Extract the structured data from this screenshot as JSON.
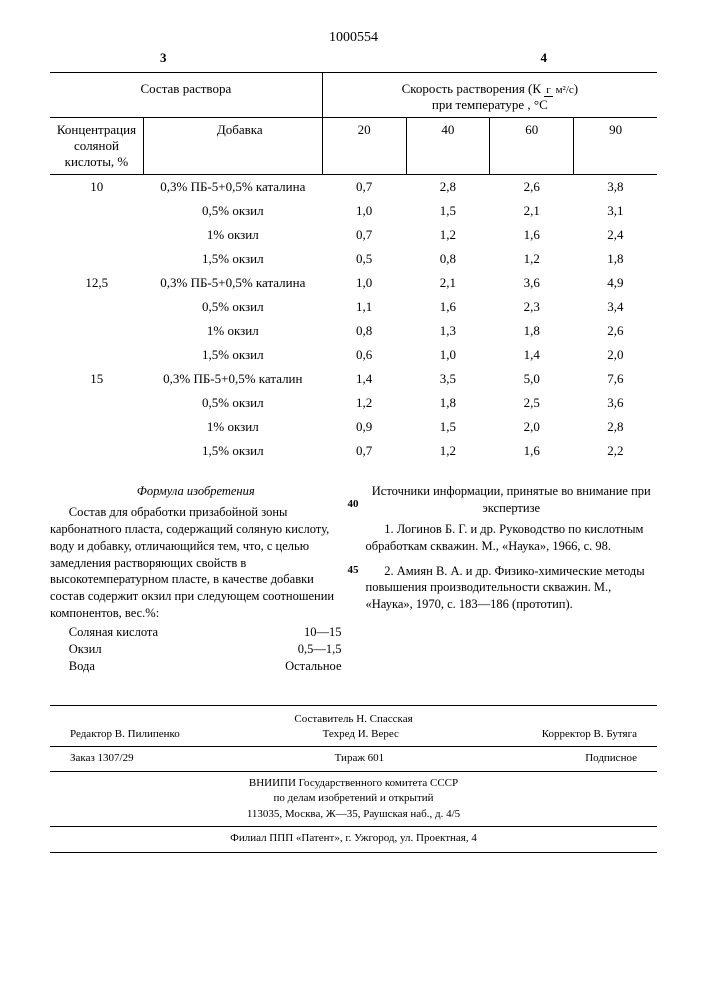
{
  "doc_number": "1000554",
  "page_left": "3",
  "page_right": "4",
  "table": {
    "header_left_1": "Состав раствора",
    "header_right_1_a": "Скорость растворения (К",
    "header_right_1_b": ")",
    "header_right_2": "при температуре , °С",
    "unit_top": "г",
    "unit_bot": "м²/с",
    "col_conc": "Концентрация соляной кислоты, %",
    "col_add": "Добавка",
    "temps": [
      "20",
      "40",
      "60",
      "90"
    ],
    "groups": [
      {
        "conc": "10",
        "rows": [
          {
            "add": "0,3% ПБ-5+0,5% каталина",
            "v": [
              "0,7",
              "2,8",
              "2,6",
              "3,8"
            ]
          },
          {
            "add": "0,5% окзил",
            "v": [
              "1,0",
              "1,5",
              "2,1",
              "3,1"
            ]
          },
          {
            "add": "1% окзил",
            "v": [
              "0,7",
              "1,2",
              "1,6",
              "2,4"
            ]
          },
          {
            "add": "1,5% окзил",
            "v": [
              "0,5",
              "0,8",
              "1,2",
              "1,8"
            ]
          }
        ]
      },
      {
        "conc": "12,5",
        "rows": [
          {
            "add": "0,3% ПБ-5+0,5% каталина",
            "v": [
              "1,0",
              "2,1",
              "3,6",
              "4,9"
            ]
          },
          {
            "add": "0,5% окзил",
            "v": [
              "1,1",
              "1,6",
              "2,3",
              "3,4"
            ]
          },
          {
            "add": "1% окзил",
            "v": [
              "0,8",
              "1,3",
              "1,8",
              "2,6"
            ]
          },
          {
            "add": "1,5% окзил",
            "v": [
              "0,6",
              "1,0",
              "1,4",
              "2,0"
            ]
          }
        ]
      },
      {
        "conc": "15",
        "rows": [
          {
            "add": "0,3% ПБ-5+0,5% каталин",
            "v": [
              "1,4",
              "3,5",
              "5,0",
              "7,6"
            ]
          },
          {
            "add": "0,5% окзил",
            "v": [
              "1,2",
              "1,8",
              "2,5",
              "3,6"
            ]
          },
          {
            "add": "1% окзил",
            "v": [
              "0,9",
              "1,5",
              "2,0",
              "2,8"
            ]
          },
          {
            "add": "1,5% окзил",
            "v": [
              "0,7",
              "1,2",
              "1,6",
              "2,2"
            ]
          }
        ]
      }
    ]
  },
  "left_col": {
    "title": "Формула изобретения",
    "para": "Состав для обработки призабойной зоны карбонатного пласта, содержащий соляную кислоту, воду и добавку, отличающийся тем, что, с целью замедления растворяющих свойств в высокотемпературном пласте, в качестве добавки состав содержит окзил при следующем соотношении компонентов, вес.%:",
    "comp": [
      {
        "n": "Соляная кислота",
        "v": "10—15"
      },
      {
        "n": "Окзил",
        "v": "0,5—1,5"
      },
      {
        "n": "Вода",
        "v": "Остальное"
      }
    ],
    "margin40": "40",
    "margin45": "45"
  },
  "right_col": {
    "title": "Источники информации, принятые во внимание при экспертизе",
    "ref1": "1. Логинов Б. Г. и др. Руководство по кислотным обработкам скважин. М., «Наука», 1966, с. 98.",
    "ref2": "2. Амиян В. А. и др. Физико-химические методы повышения производительности скважин. М., «Наука», 1970, с. 183—186 (прототип)."
  },
  "imprint": {
    "line1a": "Составитель Н. Спасская",
    "row3": {
      "a": "Редактор В. Пилипенко",
      "b": "Техред И. Верес",
      "c": "Корректор В. Бутяга"
    },
    "row4": {
      "a": "Заказ 1307/29",
      "b": "Тираж 601",
      "c": "Подписное"
    },
    "line5": "ВНИИПИ Государственного комитета СССР",
    "line6": "по делам изобретений и открытий",
    "line7": "113035, Москва, Ж—35, Раушская наб., д. 4/5",
    "line8": "Филиал ППП «Патент», г. Ужгород, ул. Проектная, 4"
  }
}
